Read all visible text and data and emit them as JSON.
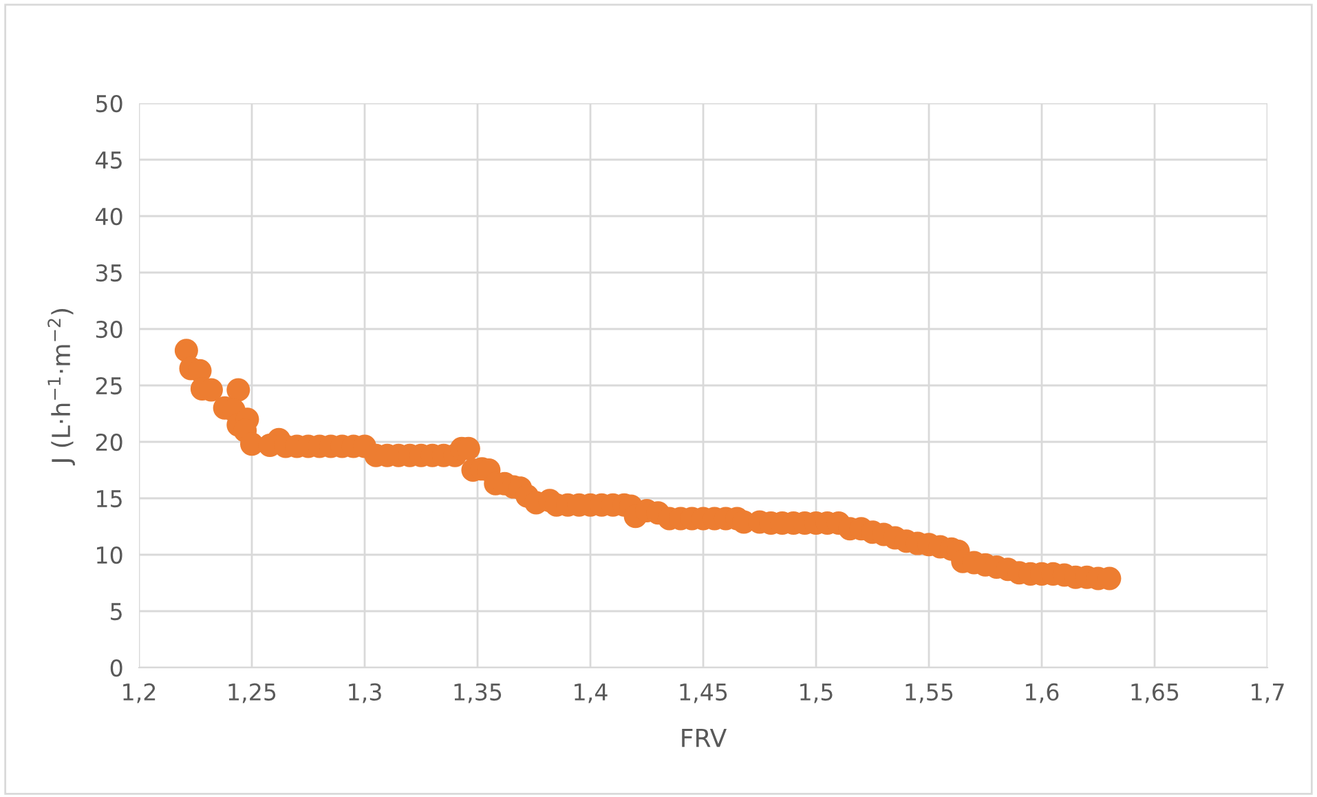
{
  "chart_data": {
    "type": "scatter",
    "xlabel": "FRV",
    "ylabel": "J (L·h$^{−1}$·m$^{−2}$)",
    "xlim": [
      1.2,
      1.7
    ],
    "xticks": [
      {
        "value": 1.2,
        "label": "1,2"
      },
      {
        "value": 1.25,
        "label": "1,25"
      },
      {
        "value": 1.3,
        "label": "1,3"
      },
      {
        "value": 1.35,
        "label": "1,35"
      },
      {
        "value": 1.4,
        "label": "1,4"
      },
      {
        "value": 1.45,
        "label": "1,45"
      },
      {
        "value": 1.5,
        "label": "1,5"
      },
      {
        "value": 1.55,
        "label": "1,55"
      },
      {
        "value": 1.6,
        "label": "1,6"
      },
      {
        "value": 1.65,
        "label": "1,65"
      },
      {
        "value": 1.7,
        "label": "1,7"
      }
    ],
    "ylim": [
      0,
      50
    ],
    "yticks": [
      0,
      5,
      10,
      15,
      20,
      25,
      30,
      35,
      40,
      45,
      50
    ],
    "grid": true,
    "marker": "circle",
    "series": [
      {
        "color": "#ed7d31",
        "x": [
          1.221,
          1.223,
          1.227,
          1.228,
          1.232,
          1.244,
          1.238,
          1.242,
          1.244,
          1.248,
          1.247,
          1.25,
          1.262,
          1.258,
          1.265,
          1.27,
          1.275,
          1.28,
          1.285,
          1.29,
          1.295,
          1.3,
          1.305,
          1.31,
          1.315,
          1.32,
          1.325,
          1.33,
          1.335,
          1.34,
          1.343,
          1.346,
          1.348,
          1.352,
          1.355,
          1.358,
          1.362,
          1.366,
          1.369,
          1.372,
          1.376,
          1.382,
          1.385,
          1.39,
          1.395,
          1.4,
          1.405,
          1.41,
          1.415,
          1.418,
          1.42,
          1.425,
          1.43,
          1.435,
          1.44,
          1.445,
          1.45,
          1.455,
          1.46,
          1.465,
          1.468,
          1.475,
          1.48,
          1.485,
          1.49,
          1.495,
          1.5,
          1.505,
          1.51,
          1.515,
          1.52,
          1.525,
          1.53,
          1.535,
          1.54,
          1.545,
          1.55,
          1.555,
          1.56,
          1.563,
          1.565,
          1.57,
          1.575,
          1.58,
          1.585,
          1.59,
          1.595,
          1.6,
          1.605,
          1.61,
          1.615,
          1.62,
          1.625,
          1.63
        ],
        "values": [
          28.1,
          26.5,
          26.3,
          24.7,
          24.6,
          24.6,
          23.0,
          22.8,
          21.5,
          22.0,
          21.0,
          19.8,
          20.2,
          19.7,
          19.6,
          19.6,
          19.6,
          19.6,
          19.6,
          19.6,
          19.6,
          19.6,
          18.8,
          18.8,
          18.8,
          18.8,
          18.8,
          18.8,
          18.8,
          18.8,
          19.4,
          19.4,
          17.5,
          17.6,
          17.5,
          16.3,
          16.3,
          16.0,
          15.9,
          15.2,
          14.6,
          14.8,
          14.4,
          14.4,
          14.4,
          14.4,
          14.4,
          14.4,
          14.4,
          14.3,
          13.4,
          13.9,
          13.7,
          13.2,
          13.2,
          13.2,
          13.2,
          13.2,
          13.2,
          13.2,
          12.9,
          12.9,
          12.8,
          12.8,
          12.8,
          12.8,
          12.8,
          12.8,
          12.8,
          12.3,
          12.3,
          12.0,
          11.8,
          11.5,
          11.2,
          11.0,
          10.9,
          10.7,
          10.5,
          10.3,
          9.4,
          9.3,
          9.1,
          8.9,
          8.7,
          8.4,
          8.3,
          8.3,
          8.3,
          8.2,
          8.0,
          8.0,
          7.9,
          7.9
        ]
      }
    ]
  }
}
